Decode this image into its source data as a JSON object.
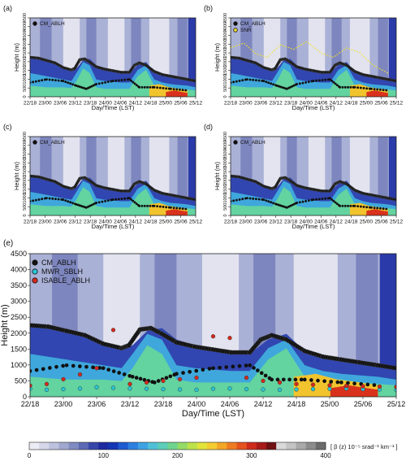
{
  "chart_data": [
    {
      "type": "heatmap",
      "panel": "(a)",
      "xlabel": "Day/Time (LST)",
      "ylabel": "Height (m)",
      "x_ticks": [
        "22/18",
        "23/00",
        "23/06",
        "23/12",
        "23/18",
        "24/00",
        "24/06",
        "24/12",
        "24/18",
        "25/00",
        "25/06",
        "25/12"
      ],
      "y_ticks": [
        "0",
        "500",
        "1000",
        "1500",
        "2000",
        "2500",
        "3000",
        "3500",
        "4000",
        "4500"
      ],
      "ylim": [
        0,
        4500
      ],
      "legend": [
        "CM_ABLH"
      ]
    },
    {
      "type": "heatmap",
      "panel": "(b)",
      "xlabel": "Day/Time (LST)",
      "ylabel": "Height (m)",
      "x_ticks": [
        "22/18",
        "23/00",
        "23/06",
        "23/12",
        "23/18",
        "24/00",
        "24/06",
        "24/12",
        "24/18",
        "25/00",
        "25/06",
        "25/12"
      ],
      "y_ticks": [
        "0",
        "500",
        "1000",
        "1500",
        "2000",
        "2500",
        "3000",
        "3500",
        "4000",
        "4500"
      ],
      "ylim": [
        0,
        4500
      ],
      "legend": [
        "CM_ABLH",
        "SNR"
      ]
    },
    {
      "type": "heatmap",
      "panel": "(c)",
      "xlabel": "Day/Time (LST)",
      "ylabel": "Height (m)",
      "x_ticks": [
        "22/18",
        "23/00",
        "23/06",
        "23/12",
        "23/18",
        "24/00",
        "24/06",
        "24/12",
        "24/18",
        "25/00",
        "25/06",
        "25/12"
      ],
      "y_ticks": [
        "0",
        "500",
        "1000",
        "1500",
        "2000",
        "2500",
        "3000",
        "3500",
        "4000",
        "4500"
      ],
      "ylim": [
        0,
        4500
      ],
      "legend": [
        "CM_ABLH"
      ]
    },
    {
      "type": "heatmap",
      "panel": "(d)",
      "xlabel": "Day/Time (LST)",
      "ylabel": "Height (m)",
      "x_ticks": [
        "22/18",
        "23/00",
        "23/06",
        "23/12",
        "23/18",
        "24/00",
        "24/06",
        "24/12",
        "24/18",
        "25/00",
        "25/06",
        "25/12"
      ],
      "y_ticks": [
        "0",
        "500",
        "1000",
        "1500",
        "2000",
        "2500",
        "3000",
        "3500",
        "4000",
        "4500"
      ],
      "ylim": [
        0,
        4500
      ],
      "legend": [
        "CM_ABLH"
      ]
    },
    {
      "type": "heatmap",
      "panel": "(e)",
      "xlabel": "Day/Time (LST)",
      "ylabel": "Height (m)",
      "x_ticks": [
        "22/18",
        "23/00",
        "23/06",
        "23/12",
        "23/18",
        "24/00",
        "24/06",
        "24/12",
        "24/18",
        "25/00",
        "25/06",
        "25/12"
      ],
      "y_ticks": [
        "0",
        "500",
        "1000",
        "1500",
        "2000",
        "2500",
        "3000",
        "3500",
        "4000",
        "4500"
      ],
      "ylim": [
        0,
        4500
      ],
      "legend": [
        "CM_ABLH",
        "MWR_SBLH",
        "ISABLE_ABLH"
      ],
      "series": [
        {
          "name": "CM_ABLH",
          "x": [
            0,
            0.5,
            1,
            1.5,
            2,
            2.5,
            3,
            3.5,
            4,
            4.5,
            5,
            5.5,
            6,
            6.5,
            7,
            7.5,
            8,
            8.5,
            9,
            9.5,
            10,
            10.5,
            11
          ],
          "values": [
            2250,
            2150,
            2000,
            1850,
            1500,
            2150,
            1900,
            1600,
            1550,
            1500,
            1350,
            1850,
            1800,
            1500,
            1350,
            1250,
            1200,
            1150,
            1100,
            1050,
            1000,
            950,
            900
          ]
        },
        {
          "name": "MWR_SBLH",
          "x": [
            0,
            0.5,
            1,
            1.5,
            2,
            2.5,
            3,
            3.5,
            4,
            4.5,
            5,
            5.5,
            6,
            6.5,
            7,
            7.5,
            8,
            8.5,
            9,
            9.5,
            10,
            10.5,
            11
          ],
          "values": [
            250,
            220,
            240,
            260,
            300,
            280,
            260,
            250,
            240,
            230,
            220,
            250,
            260,
            240,
            230,
            220,
            230,
            240,
            250,
            260,
            240,
            230,
            220
          ]
        },
        {
          "name": "ISABLE_ABLH",
          "x": [
            0,
            0.5,
            1,
            1.5,
            2,
            2.5,
            3,
            3.5,
            4,
            4.5,
            5,
            5.5,
            6,
            6.5,
            7,
            7.5,
            8,
            8.5,
            9,
            9.5,
            10,
            10.5,
            11
          ],
          "values": [
            350,
            400,
            550,
            700,
            900,
            2100,
            400,
            450,
            500,
            550,
            600,
            1900,
            1850,
            600,
            500,
            450,
            400,
            380,
            360,
            340,
            330,
            320,
            310
          ]
        }
      ]
    }
  ],
  "colorbar": {
    "label": "[ β (z) 10⁻⁵ srad⁻¹ km⁻¹ ]",
    "ticks": [
      "0",
      "100",
      "200",
      "300",
      "400"
    ],
    "range": [
      0,
      400
    ],
    "colors": [
      "#ececf5",
      "#d6d8ea",
      "#bcc1de",
      "#a0a8d0",
      "#808bc2",
      "#5c69b4",
      "#3646a8",
      "#1e2aa0",
      "#1436b5",
      "#1e5ad0",
      "#2d7fe0",
      "#3ea2e4",
      "#4fc0d8",
      "#5ccdb8",
      "#6fd48f",
      "#94dc66",
      "#bde34a",
      "#e3e43a",
      "#f4cc30",
      "#f4a627",
      "#ef7c22",
      "#e4521e",
      "#cf2a1b",
      "#a71a18",
      "#6f1012",
      "#d9d9d9",
      "#c4c4c4",
      "#a9a9a9",
      "#8c8c8c",
      "#6a6a6a"
    ]
  }
}
